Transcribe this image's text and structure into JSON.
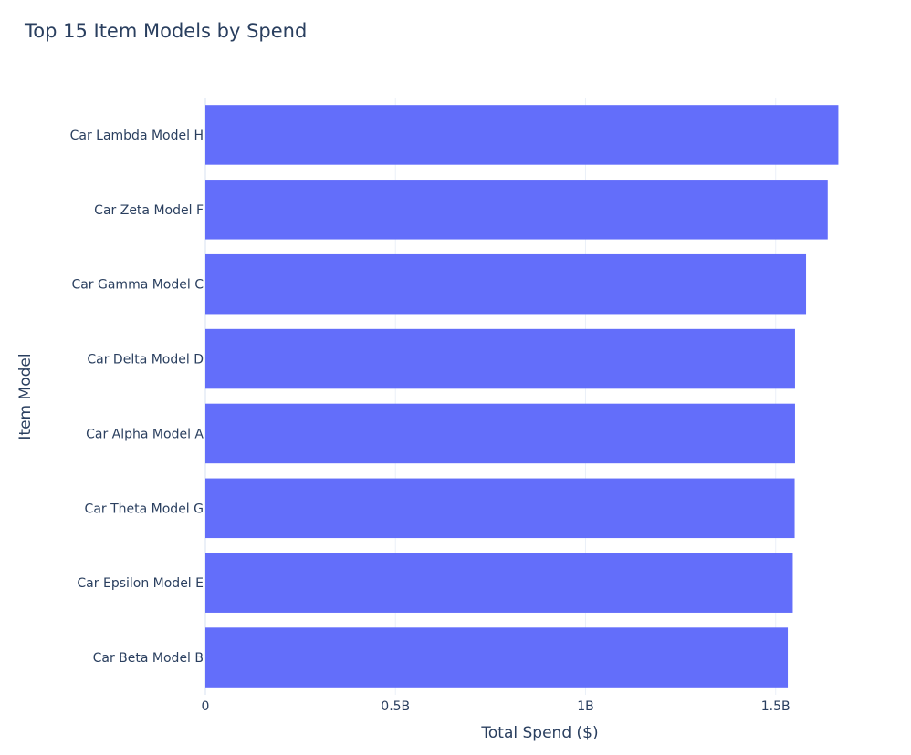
{
  "chart_data": {
    "type": "bar",
    "orientation": "horizontal",
    "title": "Top 15 Item Models by Spend",
    "xlabel": "Total Spend ($)",
    "ylabel": "Item Model",
    "categories": [
      "Car Lambda Model H",
      "Car Zeta Model F",
      "Car Gamma Model C",
      "Car Delta Model D",
      "Car Alpha Model A",
      "Car Theta Model G",
      "Car Epsilon Model E",
      "Car Beta Model B"
    ],
    "values": [
      1665000000,
      1637000000,
      1580000000,
      1551000000,
      1551000000,
      1550000000,
      1545000000,
      1532000000
    ],
    "xlim": [
      0,
      1760000000
    ],
    "xticks": [
      0,
      500000000,
      1000000000,
      1500000000
    ],
    "xtick_labels": [
      "0",
      "0.5B",
      "1B",
      "1.5B"
    ],
    "grid": true,
    "bar_color": "#636efa",
    "grid_color": "#ebf0f8",
    "text_color": "#2a3f5f"
  }
}
